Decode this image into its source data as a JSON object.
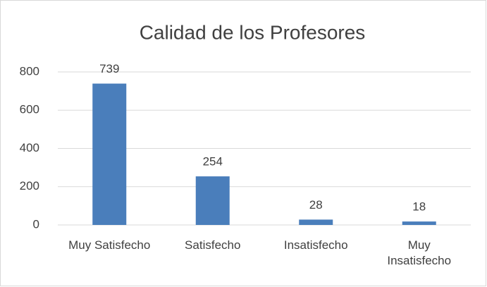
{
  "chart_data": {
    "type": "bar",
    "title": "Calidad de los Profesores",
    "categories": [
      "Muy Satisfecho",
      "Satisfecho",
      "Insatisfecho",
      "Muy Insatisfecho"
    ],
    "values": [
      739,
      254,
      28,
      18
    ],
    "color": "#4a7ebb",
    "ylim": [
      0,
      800
    ],
    "yticks": [
      0,
      200,
      400,
      600,
      800
    ],
    "grid": true
  }
}
